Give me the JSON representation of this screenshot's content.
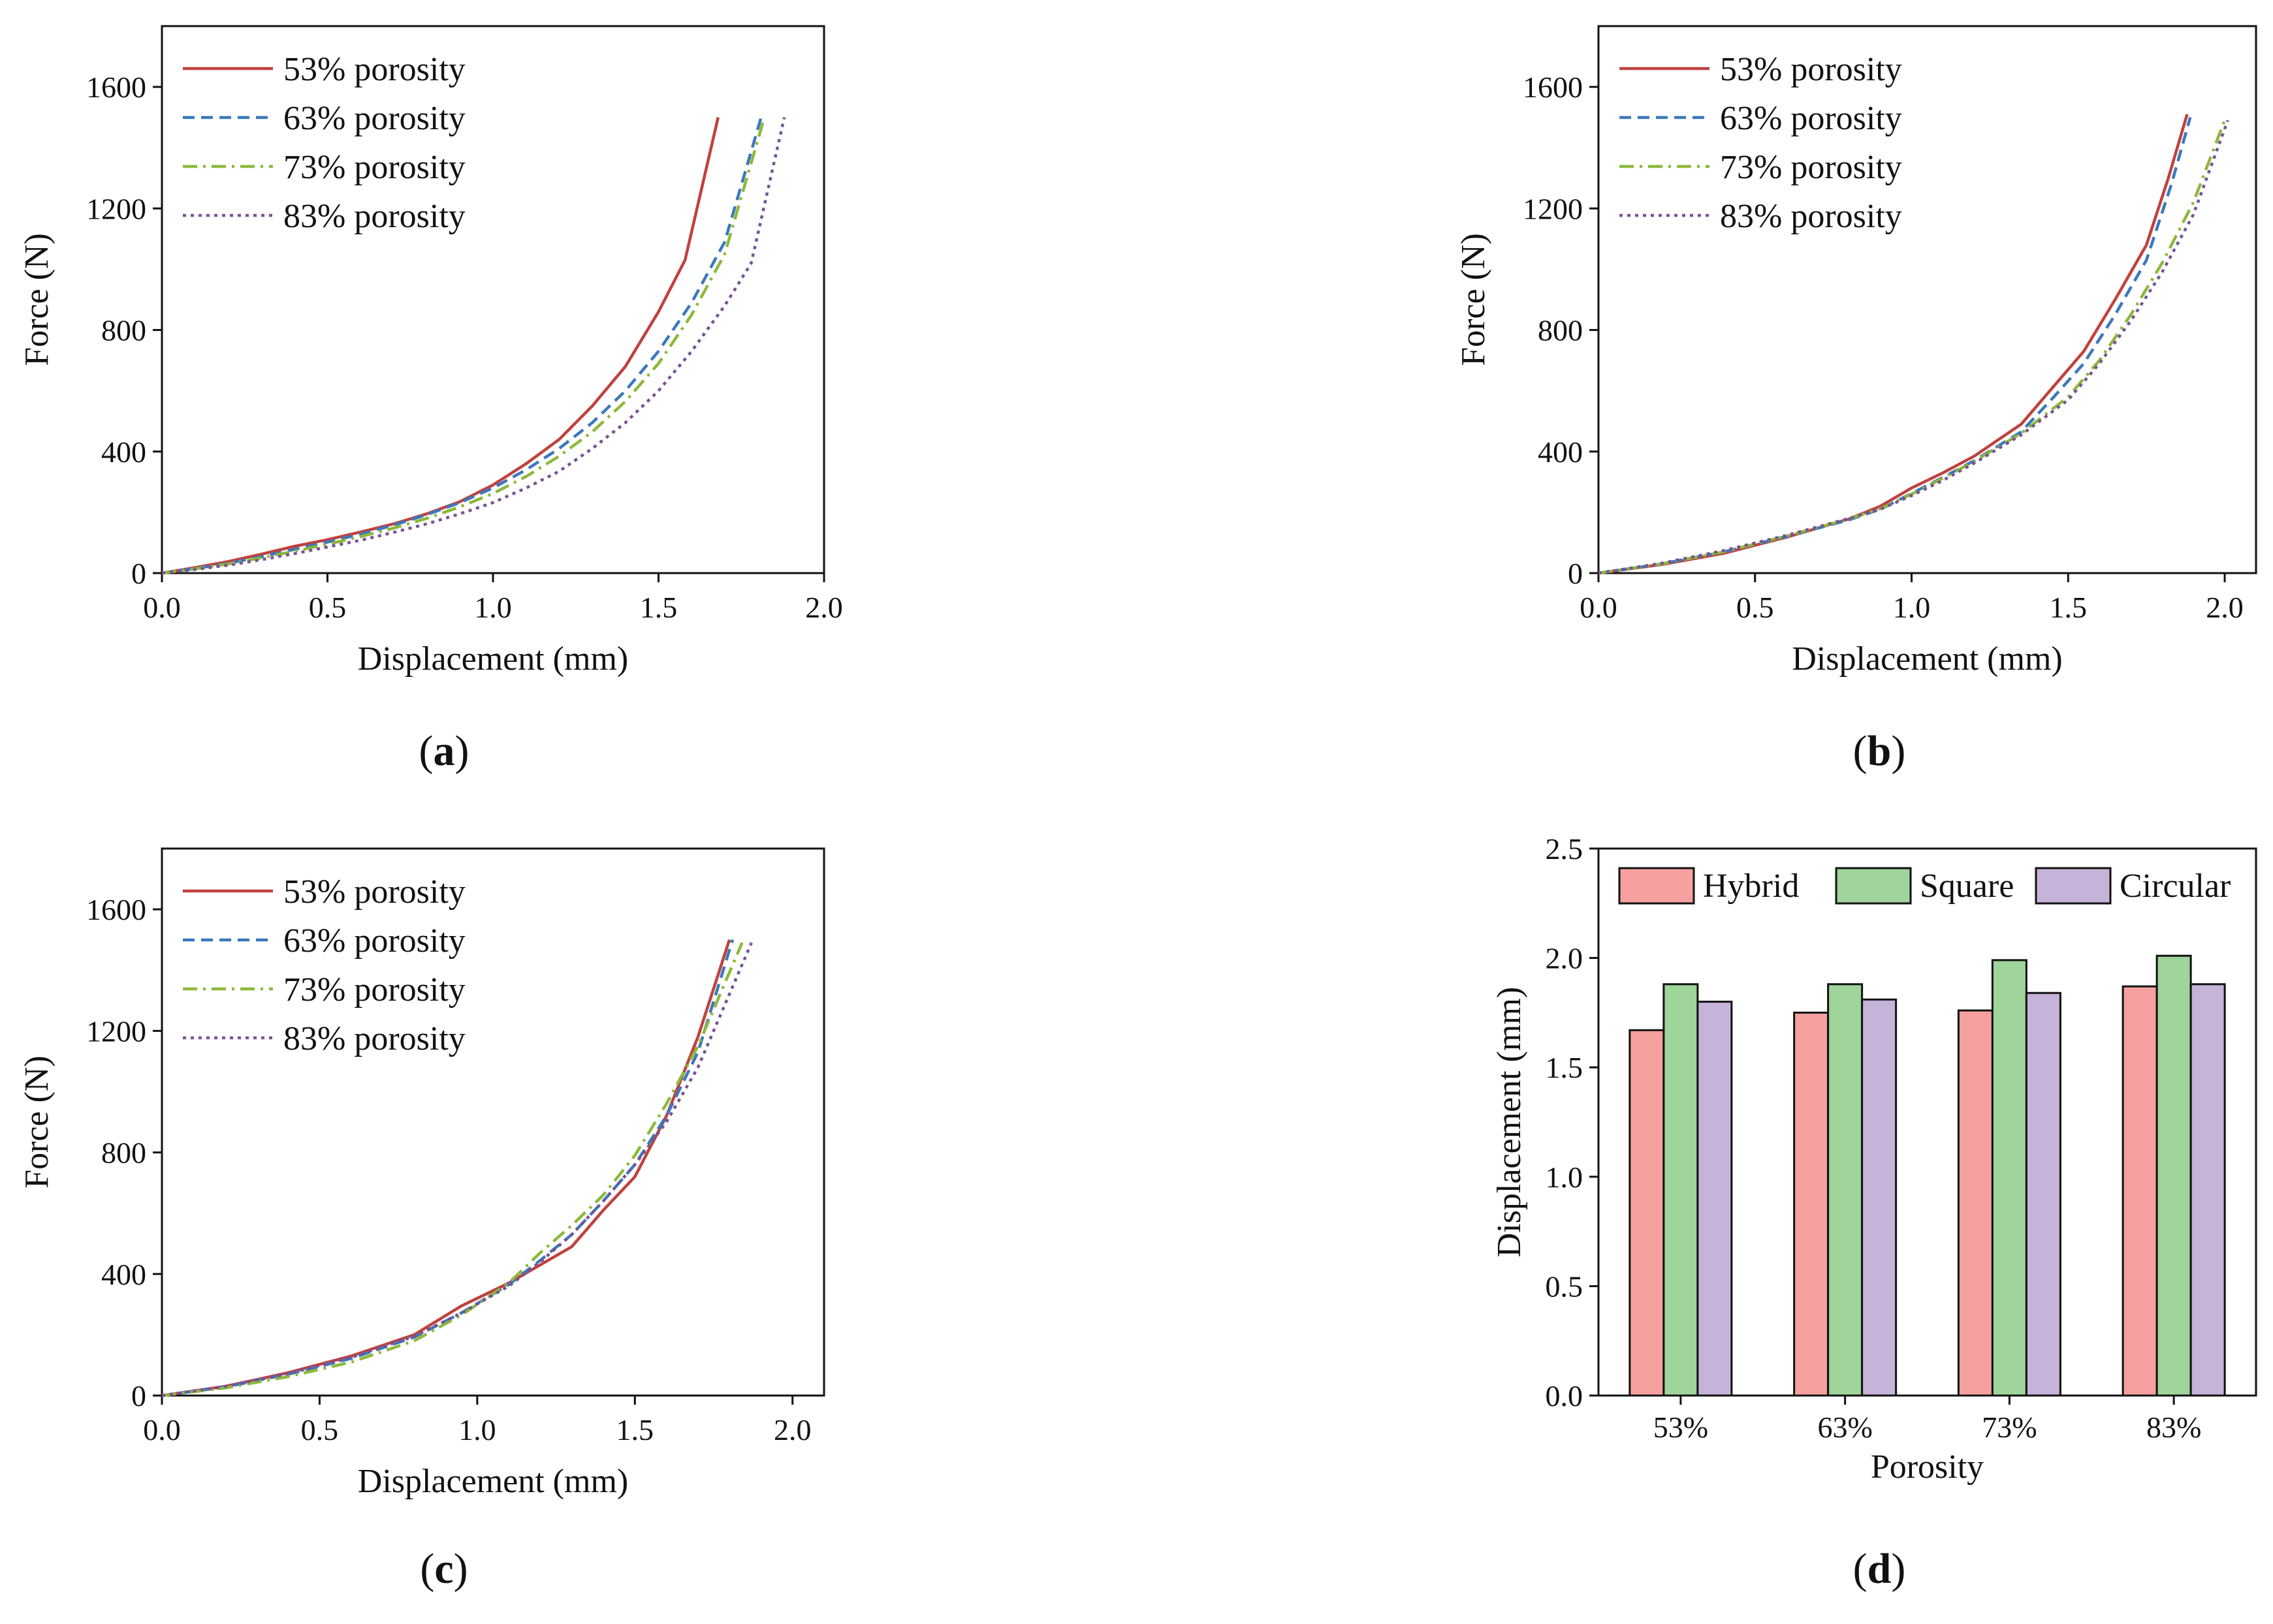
{
  "colors": {
    "s53": "#c0413e",
    "s63": "#3b78bd",
    "s73": "#8db83a",
    "s83": "#7a5294",
    "hybrid": "#f7a0a0",
    "square": "#9fd49a",
    "circular": "#c5b3d9",
    "axis": "#111111"
  },
  "chart_data": [
    {
      "id": "a",
      "caption": {
        "open": "(",
        "letter": "a",
        "close": ")"
      },
      "type": "line",
      "title": "",
      "xlabel": "Displacement (mm)",
      "ylabel": "Force (N)",
      "xlim": [
        0,
        2.0
      ],
      "ylim": [
        0,
        1800
      ],
      "xticks": [
        "0.0",
        "0.5",
        "1.0",
        "1.5",
        "2.0"
      ],
      "xtick_values": [
        0,
        0.5,
        1.0,
        1.5,
        2.0
      ],
      "yticks": [
        "0",
        "400",
        "800",
        "1200",
        "1600"
      ],
      "ytick_values": [
        0,
        400,
        800,
        1200,
        1600
      ],
      "legend_position": "top-left",
      "series": [
        {
          "name": "53% porosity",
          "style": "solid",
          "color_key": "s53",
          "x": [
            0,
            0.1,
            0.2,
            0.3,
            0.4,
            0.5,
            0.6,
            0.7,
            0.8,
            0.9,
            1.0,
            1.1,
            1.2,
            1.3,
            1.4,
            1.5,
            1.58,
            1.68
          ],
          "y": [
            0,
            18,
            38,
            62,
            88,
            110,
            135,
            162,
            195,
            235,
            290,
            360,
            440,
            550,
            680,
            860,
            1030,
            1500
          ]
        },
        {
          "name": "63% porosity",
          "style": "dashed",
          "color_key": "s63",
          "x": [
            0,
            0.1,
            0.2,
            0.3,
            0.4,
            0.5,
            0.6,
            0.7,
            0.8,
            0.9,
            1.0,
            1.1,
            1.2,
            1.3,
            1.4,
            1.5,
            1.6,
            1.7,
            1.81
          ],
          "y": [
            0,
            15,
            32,
            54,
            78,
            102,
            128,
            158,
            192,
            232,
            280,
            340,
            410,
            495,
            600,
            730,
            890,
            1090,
            1500
          ]
        },
        {
          "name": "73% porosity",
          "style": "dashdot",
          "color_key": "s73",
          "x": [
            0,
            0.1,
            0.2,
            0.3,
            0.4,
            0.5,
            0.6,
            0.7,
            0.8,
            0.9,
            1.0,
            1.1,
            1.2,
            1.3,
            1.4,
            1.5,
            1.6,
            1.7,
            1.82
          ],
          "y": [
            0,
            14,
            30,
            50,
            72,
            95,
            120,
            148,
            180,
            218,
            262,
            318,
            385,
            465,
            565,
            690,
            850,
            1050,
            1500
          ]
        },
        {
          "name": "83% porosity",
          "style": "dotted",
          "color_key": "s83",
          "x": [
            0,
            0.1,
            0.2,
            0.3,
            0.4,
            0.5,
            0.6,
            0.7,
            0.8,
            0.9,
            1.0,
            1.1,
            1.2,
            1.3,
            1.4,
            1.5,
            1.6,
            1.7,
            1.78,
            1.88
          ],
          "y": [
            0,
            12,
            26,
            44,
            64,
            86,
            108,
            134,
            162,
            195,
            232,
            280,
            335,
            410,
            495,
            600,
            730,
            880,
            1020,
            1500
          ]
        }
      ]
    },
    {
      "id": "b",
      "caption": {
        "open": "(",
        "letter": "b",
        "close": ")"
      },
      "type": "line",
      "title": "",
      "xlabel": "Displacement (mm)",
      "ylabel": "Force (N)",
      "xlim": [
        0,
        2.1
      ],
      "ylim": [
        0,
        1800
      ],
      "xticks": [
        "0.0",
        "0.5",
        "1.0",
        "1.5",
        "2.0"
      ],
      "xtick_values": [
        0,
        0.5,
        1.0,
        1.5,
        2.0
      ],
      "yticks": [
        "0",
        "400",
        "800",
        "1200",
        "1600"
      ],
      "ytick_values": [
        0,
        400,
        800,
        1200,
        1600
      ],
      "legend_position": "top-left",
      "series": [
        {
          "name": "53% porosity",
          "style": "solid",
          "color_key": "s53",
          "x": [
            0,
            0.2,
            0.4,
            0.6,
            0.8,
            0.9,
            1.0,
            1.1,
            1.2,
            1.35,
            1.45,
            1.55,
            1.65,
            1.75,
            1.82,
            1.88
          ],
          "y": [
            0,
            28,
            65,
            118,
            178,
            220,
            280,
            330,
            385,
            490,
            610,
            730,
            900,
            1080,
            1300,
            1510
          ]
        },
        {
          "name": "63% porosity",
          "style": "dashed",
          "color_key": "s63",
          "x": [
            0,
            0.2,
            0.4,
            0.6,
            0.8,
            0.9,
            1.0,
            1.1,
            1.2,
            1.35,
            1.45,
            1.55,
            1.65,
            1.75,
            1.83,
            1.89
          ],
          "y": [
            0,
            30,
            70,
            120,
            175,
            210,
            262,
            315,
            370,
            465,
            575,
            690,
            850,
            1030,
            1280,
            1500
          ]
        },
        {
          "name": "73% porosity",
          "style": "dashdot",
          "color_key": "s73",
          "x": [
            0,
            0.2,
            0.4,
            0.6,
            0.8,
            0.9,
            1.0,
            1.1,
            1.2,
            1.35,
            1.5,
            1.6,
            1.7,
            1.8,
            1.9,
            2.0
          ],
          "y": [
            0,
            30,
            70,
            122,
            178,
            212,
            260,
            312,
            368,
            460,
            580,
            700,
            850,
            1020,
            1220,
            1490
          ]
        },
        {
          "name": "83% porosity",
          "style": "dotted",
          "color_key": "s83",
          "x": [
            0,
            0.2,
            0.4,
            0.6,
            0.8,
            0.9,
            1.0,
            1.1,
            1.2,
            1.35,
            1.5,
            1.6,
            1.7,
            1.8,
            1.9,
            2.01
          ],
          "y": [
            0,
            32,
            74,
            124,
            180,
            210,
            255,
            305,
            362,
            455,
            570,
            690,
            830,
            990,
            1180,
            1490
          ]
        }
      ]
    },
    {
      "id": "c",
      "caption": {
        "open": "(",
        "letter": "c",
        "close": ")"
      },
      "type": "line",
      "title": "",
      "xlabel": "Displacement (mm)",
      "ylabel": "Force (N)",
      "xlim": [
        0,
        2.1
      ],
      "ylim": [
        0,
        1800
      ],
      "xticks": [
        "0.0",
        "0.5",
        "1.0",
        "1.5",
        "2.0"
      ],
      "xtick_values": [
        0,
        0.5,
        1.0,
        1.5,
        2.0
      ],
      "yticks": [
        "0",
        "400",
        "800",
        "1200",
        "1600"
      ],
      "ytick_values": [
        0,
        400,
        800,
        1200,
        1600
      ],
      "legend_position": "top-left",
      "series": [
        {
          "name": "53% porosity",
          "style": "solid",
          "color_key": "s53",
          "x": [
            0,
            0.2,
            0.4,
            0.6,
            0.8,
            0.95,
            1.1,
            1.2,
            1.3,
            1.4,
            1.5,
            1.6,
            1.7,
            1.8
          ],
          "y": [
            0,
            30,
            75,
            130,
            200,
            295,
            370,
            430,
            490,
            610,
            720,
            920,
            1180,
            1500
          ]
        },
        {
          "name": "63% porosity",
          "style": "dashed",
          "color_key": "s63",
          "x": [
            0,
            0.2,
            0.4,
            0.6,
            0.8,
            0.95,
            1.1,
            1.2,
            1.3,
            1.4,
            1.5,
            1.6,
            1.7,
            1.81
          ],
          "y": [
            0,
            28,
            70,
            122,
            192,
            272,
            365,
            445,
            530,
            640,
            760,
            920,
            1130,
            1500
          ]
        },
        {
          "name": "73% porosity",
          "style": "dashdot",
          "color_key": "s73",
          "x": [
            0,
            0.2,
            0.4,
            0.6,
            0.8,
            0.95,
            1.1,
            1.2,
            1.3,
            1.4,
            1.5,
            1.6,
            1.7,
            1.84
          ],
          "y": [
            0,
            25,
            62,
            110,
            180,
            265,
            370,
            470,
            560,
            660,
            790,
            960,
            1150,
            1490
          ]
        },
        {
          "name": "83% porosity",
          "style": "dotted",
          "color_key": "s83",
          "x": [
            0,
            0.2,
            0.4,
            0.6,
            0.8,
            0.95,
            1.1,
            1.2,
            1.3,
            1.4,
            1.5,
            1.6,
            1.7,
            1.87
          ],
          "y": [
            0,
            30,
            72,
            125,
            195,
            272,
            360,
            440,
            530,
            640,
            760,
            900,
            1080,
            1490
          ]
        }
      ]
    },
    {
      "id": "d",
      "caption": {
        "open": "(",
        "letter": "d",
        "close": ")"
      },
      "type": "bar",
      "title": "",
      "xlabel": "Porosity",
      "ylabel": "Displacement (mm)",
      "ylim": [
        0,
        2.5
      ],
      "yticks": [
        "0.0",
        "0.5",
        "1.0",
        "1.5",
        "2.0",
        "2.5"
      ],
      "ytick_values": [
        0,
        0.5,
        1.0,
        1.5,
        2.0,
        2.5
      ],
      "categories": [
        "53%",
        "63%",
        "73%",
        "83%"
      ],
      "legend_position": "top",
      "series": [
        {
          "name": "Hybrid",
          "color_key": "hybrid",
          "values": [
            1.67,
            1.75,
            1.76,
            1.87
          ]
        },
        {
          "name": "Square",
          "color_key": "square",
          "values": [
            1.88,
            1.88,
            1.99,
            2.01
          ]
        },
        {
          "name": "Circular",
          "color_key": "circular",
          "values": [
            1.8,
            1.81,
            1.84,
            1.88
          ]
        }
      ]
    }
  ]
}
